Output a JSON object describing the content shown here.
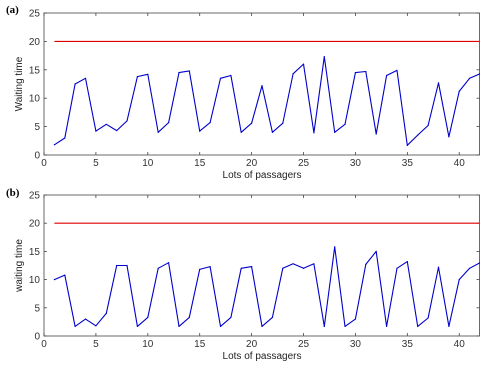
{
  "chart_data": [
    {
      "type": "line",
      "panel_label": "(a)",
      "xlabel": "Lots of passagers",
      "ylabel": "Waiting time",
      "xlim": [
        0,
        42
      ],
      "ylim": [
        0,
        25
      ],
      "xticks": [
        0,
        5,
        10,
        15,
        20,
        25,
        30,
        35,
        40
      ],
      "yticks": [
        0,
        5,
        10,
        15,
        20,
        25
      ],
      "grid": false,
      "reference_line": {
        "y": 20,
        "color": "#e00000"
      },
      "series": [
        {
          "color": "#0000cc",
          "x": [
            1,
            2,
            3,
            4,
            5,
            6,
            7,
            8,
            9,
            10,
            11,
            12,
            13,
            14,
            15,
            16,
            17,
            18,
            19,
            20,
            21,
            22,
            23,
            24,
            25,
            26,
            27,
            28,
            29,
            30,
            31,
            32,
            33,
            34,
            35,
            36,
            37,
            38,
            39,
            40,
            41,
            42
          ],
          "y": [
            1.8,
            3.0,
            12.5,
            13.5,
            4.2,
            5.4,
            4.3,
            6.0,
            13.8,
            14.2,
            4.0,
            5.7,
            14.5,
            14.8,
            4.2,
            5.7,
            13.5,
            14.0,
            4.0,
            5.6,
            12.2,
            4.0,
            5.6,
            14.3,
            16.0,
            3.9,
            17.3,
            4.0,
            5.4,
            14.5,
            14.7,
            3.7,
            14.0,
            14.9,
            1.7,
            3.5,
            5.2,
            12.7,
            3.2,
            11.2,
            13.5,
            14.3
          ]
        }
      ]
    },
    {
      "type": "line",
      "panel_label": "(b)",
      "xlabel": "Lots of passagers",
      "ylabel": "waiting time",
      "xlim": [
        0,
        42
      ],
      "ylim": [
        0,
        25
      ],
      "xticks": [
        0,
        5,
        10,
        15,
        20,
        25,
        30,
        35,
        40
      ],
      "yticks": [
        0,
        5,
        10,
        15,
        20,
        25
      ],
      "grid": false,
      "reference_line": {
        "y": 20,
        "color": "#e00000"
      },
      "series": [
        {
          "color": "#0000cc",
          "x": [
            1,
            2,
            3,
            4,
            5,
            6,
            7,
            8,
            9,
            10,
            11,
            12,
            13,
            14,
            15,
            16,
            17,
            18,
            19,
            20,
            21,
            22,
            23,
            24,
            25,
            26,
            27,
            28,
            29,
            30,
            31,
            32,
            33,
            34,
            35,
            36,
            37,
            38,
            39,
            40,
            41,
            42
          ],
          "y": [
            10.0,
            10.8,
            1.7,
            3.0,
            1.8,
            4.0,
            12.5,
            12.5,
            1.7,
            3.3,
            12.0,
            13.0,
            1.7,
            3.3,
            11.8,
            12.3,
            1.7,
            3.3,
            12.0,
            12.3,
            1.7,
            3.3,
            12.0,
            12.8,
            12.0,
            12.8,
            1.7,
            15.8,
            1.7,
            3.0,
            12.7,
            15.0,
            1.7,
            12.0,
            13.2,
            1.7,
            3.2,
            12.2,
            1.7,
            10.0,
            12.0,
            13.0
          ]
        }
      ]
    }
  ]
}
